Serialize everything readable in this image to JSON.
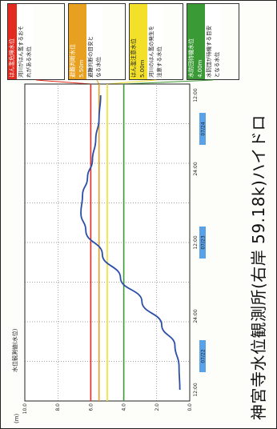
{
  "caption": "神宮寺水位観測所(右岸 59.18k)ハイドロ",
  "water_levels": [
    {
      "title": "はん濫危険水位",
      "desc": [
        "河川がはん濫するおそ",
        "れがある水位"
      ],
      "color": "#e32a1e"
    },
    {
      "title": "避難判断水位",
      "value": "5.50m",
      "desc": [
        "避難判断の目安と",
        "なる水位"
      ],
      "color": "#e8a020"
    },
    {
      "title": "はん濫注意水位",
      "value": "5.00m",
      "desc": [
        "河川のはん濫の発生を",
        "注意する水位"
      ],
      "color": "#f2e02a"
    },
    {
      "title": "水防団待機水位",
      "value": "4.00m",
      "desc": [
        "水防団が待機する目安",
        "となる水位"
      ],
      "color": "#3a9a36"
    }
  ],
  "chart_data": {
    "type": "line",
    "title": "神宮寺水位観測所(右岸 59.18k)ハイドロ",
    "y_unit": "(m)",
    "ylabel": "水位観測値(水位)",
    "ylim": [
      0,
      10
    ],
    "y_ticks": [
      "0.0",
      "2.0",
      "4.0",
      "6.0",
      "8.0",
      "10.0"
    ],
    "x_ticks": [
      "12:00",
      "24:00",
      "12:00",
      "24:00",
      "12:00"
    ],
    "dates": [
      "07/22",
      "07/23",
      "07/24"
    ],
    "grid": true,
    "thresholds": [
      {
        "name": "はん濫危険水位",
        "y": 6.0,
        "color": "#e32a1e"
      },
      {
        "name": "避難判断水位",
        "y": 5.5,
        "color": "#e8a020"
      },
      {
        "name": "はん濫注意水位",
        "y": 5.0,
        "color": "#f2e02a"
      },
      {
        "name": "水防団待機水位",
        "y": 4.0,
        "color": "#3a9a36"
      }
    ],
    "series": [
      {
        "color": "#2a4ea8",
        "x": [
          0.0,
          0.08,
          0.15,
          0.22,
          0.3,
          0.38,
          0.46,
          0.54,
          0.6,
          0.66,
          0.72,
          0.78,
          0.85,
          0.92,
          1.0
        ],
        "y": [
          0.6,
          0.65,
          0.9,
          1.7,
          2.9,
          4.2,
          5.3,
          6.3,
          6.6,
          6.5,
          6.2,
          5.9,
          5.7,
          5.5,
          5.4
        ]
      }
    ]
  }
}
